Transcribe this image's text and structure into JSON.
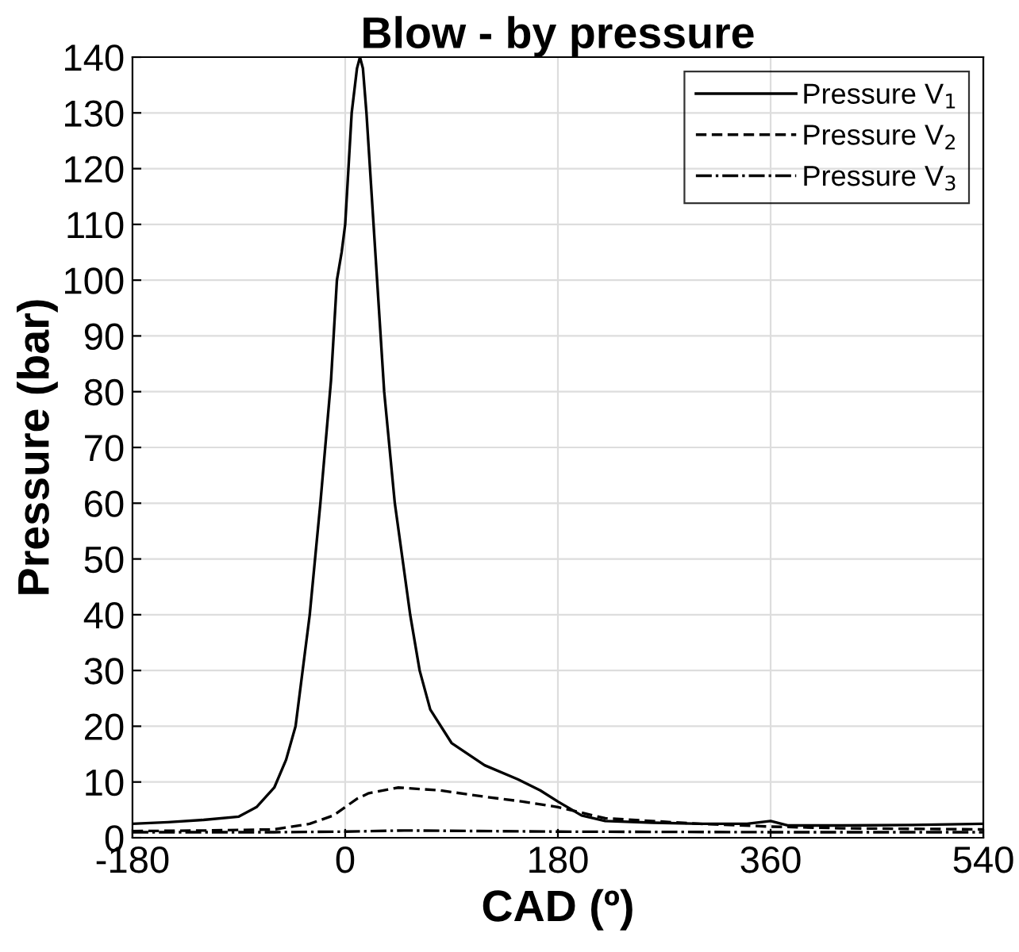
{
  "chart_data": {
    "type": "line",
    "title": "Blow - by pressure",
    "xlabel": "CAD (º)",
    "ylabel": "Pressure (bar)",
    "xlim": [
      -180,
      540
    ],
    "xticks": [
      -180,
      0,
      180,
      360,
      540
    ],
    "ylim": [
      0,
      140
    ],
    "yticks": [
      0,
      10,
      20,
      30,
      40,
      50,
      60,
      70,
      80,
      90,
      100,
      110,
      120,
      130,
      140
    ],
    "grid": true,
    "legend": "top right",
    "series": [
      {
        "name": "Pressure V$_{1}$",
        "color": "#000000",
        "line_style": "solid",
        "x": [
          -180,
          -150,
          -120,
          -90,
          -75,
          -60,
          -50,
          -42,
          -30,
          -21,
          -12,
          -7,
          -3,
          0,
          5.5,
          10,
          12.5,
          15,
          18,
          24,
          27,
          33,
          42,
          55,
          63,
          72,
          90,
          118,
          146,
          165,
          180,
          200,
          220,
          260,
          300,
          340,
          360,
          375,
          420,
          480,
          540
        ],
        "values": [
          2.5,
          2.8,
          3.2,
          3.8,
          5.5,
          9,
          14,
          20,
          40,
          60,
          82,
          100,
          105,
          110,
          130,
          138,
          140,
          138,
          130,
          110,
          100,
          80,
          60,
          40,
          30,
          23,
          17,
          13,
          10.5,
          8.5,
          6.5,
          4,
          3,
          2.7,
          2.5,
          2.5,
          3,
          2.2,
          2.2,
          2.3,
          2.5
        ]
      },
      {
        "name": "Pressure V$_{2}$",
        "color": "#000000",
        "line_style": "dashed",
        "x": [
          -180,
          -120,
          -60,
          -30,
          -10,
          0,
          10,
          20,
          45,
          80,
          120,
          150,
          180,
          220,
          300,
          360,
          420,
          540
        ],
        "values": [
          1.2,
          1.3,
          1.5,
          2.5,
          4,
          5.5,
          7,
          8,
          9,
          8.5,
          7.3,
          6.5,
          5.5,
          3.5,
          2.5,
          2,
          1.7,
          1.5
        ]
      },
      {
        "name": "Pressure V$_{3}$",
        "color": "#000000",
        "line_style": "dashdot",
        "x": [
          -180,
          -60,
          0,
          50,
          180,
          360,
          540
        ],
        "values": [
          1,
          1,
          1.1,
          1.3,
          1.1,
          1,
          1
        ]
      }
    ]
  }
}
